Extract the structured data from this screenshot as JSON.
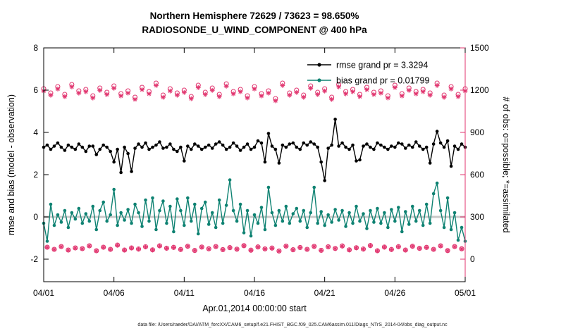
{
  "title_line1": "Northern Hemisphere 72629 / 73623 = 98.650%",
  "title_line2": "RADIOSONDE_U_WIND_COMPONENT @ 400 hPa",
  "caption": "data file: /Users/raeder/DAI/ATM_forcXX/CAM6_setup/f.e21.FHIST_BGC.f09_025.CAM6assim.011/Diags_NTrS_2014-04/obs_diag_output.nc",
  "colors": {
    "rmse": "#000000",
    "bias": "#0e8272",
    "obs": "#e1356f",
    "legend_text": "#0033ff",
    "zero_line": "#c9c9c9",
    "box": "#000000"
  },
  "chart_data": {
    "type": "line",
    "title": "Northern Hemisphere 72629 / 73623 = 98.650% | RADIOSONDE_U_WIND_COMPONENT @ 400 hPa",
    "xlabel": "Apr.01,2014 00:00:00 start",
    "ylabel_left": "rmse and bias (model - observation)",
    "ylabel_right": "# of obs: o=possible; *=assimilated",
    "x_tick_labels": [
      "04/01",
      "04/06",
      "04/11",
      "04/16",
      "04/21",
      "04/26",
      "05/01"
    ],
    "x_tick_days": [
      0,
      5,
      10,
      15,
      20,
      25,
      30
    ],
    "x_span_days": 30,
    "dt_days": 0.25,
    "yticks_left": [
      -2,
      0,
      2,
      4,
      6,
      8
    ],
    "ylim_left": [
      -3.07,
      8
    ],
    "yticks_right": [
      0,
      300,
      600,
      900,
      1200,
      1500
    ],
    "ylim_right": [
      0,
      1500
    ],
    "rmse_grand": 3.3294,
    "bias_grand": 0.01799,
    "legend": [
      "rmse grand pr = 3.3294",
      "bias grand pr = 0.01799"
    ],
    "series": {
      "assim_fraction": 0.9865,
      "rmse": [
        3.3,
        3.4,
        3.2,
        3.35,
        3.5,
        3.3,
        3.15,
        3.4,
        3.3,
        3.2,
        3.45,
        3.3,
        3.1,
        3.35,
        3.35,
        2.95,
        3.2,
        3.4,
        3.3,
        3.1,
        2.6,
        3.2,
        2.1,
        3.3,
        3.0,
        2.15,
        3.25,
        3.45,
        3.3,
        3.5,
        3.2,
        3.3,
        3.4,
        3.55,
        3.25,
        3.3,
        3.45,
        3.2,
        3.1,
        3.3,
        2.65,
        3.35,
        3.2,
        3.45,
        3.35,
        3.2,
        3.3,
        3.4,
        3.25,
        3.45,
        3.55,
        3.4,
        3.2,
        3.3,
        3.5,
        3.35,
        3.15,
        3.3,
        3.45,
        3.2,
        3.3,
        3.6,
        3.5,
        2.6,
        3.95,
        3.35,
        3.2,
        2.55,
        3.4,
        3.3,
        3.45,
        3.5,
        3.3,
        3.2,
        3.5,
        3.4,
        3.55,
        3.45,
        3.3,
        2.6,
        1.72,
        3.25,
        3.4,
        4.62,
        3.35,
        3.5,
        3.3,
        3.2,
        3.4,
        2.65,
        2.7,
        3.35,
        3.45,
        3.3,
        3.2,
        3.5,
        3.4,
        3.3,
        3.2,
        3.35,
        3.3,
        3.5,
        3.45,
        3.25,
        3.4,
        3.3,
        3.55,
        3.35,
        3.2,
        3.3,
        2.55,
        3.45,
        4.05,
        3.5,
        3.3,
        3.6,
        2.4,
        3.35,
        3.2,
        3.45,
        3.3
      ],
      "bias": [
        -0.3,
        -1.15,
        0.6,
        -0.4,
        0.1,
        -0.25,
        0.3,
        -0.5,
        0.2,
        -0.1,
        0.4,
        -0.3,
        0.15,
        -0.2,
        0.5,
        -0.6,
        0.3,
        0.7,
        -0.2,
        0.1,
        1.3,
        -0.4,
        0.2,
        -0.15,
        0.35,
        -0.3,
        0.6,
        0.2,
        -0.45,
        0.8,
        -0.2,
        0.9,
        -0.6,
        0.3,
        0.75,
        -0.3,
        0.5,
        -0.7,
        0.85,
        0.3,
        -0.4,
        0.9,
        -0.2,
        0.6,
        -0.8,
        0.4,
        0.7,
        -0.35,
        0.2,
        -0.5,
        0.8,
        -0.3,
        0.55,
        1.75,
        0.3,
        -0.2,
        0.6,
        -0.75,
        0.3,
        -0.9,
        0.1,
        -0.3,
        0.45,
        -0.6,
        1.4,
        0.2,
        -0.4,
        0.3,
        -0.2,
        0.5,
        -0.3,
        0.15,
        0.4,
        -0.2,
        0.3,
        -0.5,
        0.2,
        1.4,
        -0.3,
        0.25,
        -0.4,
        0.1,
        -0.25,
        0.35,
        -0.15,
        0.3,
        -0.45,
        0.2,
        -0.3,
        0.5,
        -0.2,
        0.15,
        -0.55,
        0.3,
        -0.25,
        0.4,
        -0.3,
        0.2,
        -0.5,
        0.35,
        -0.2,
        0.45,
        -0.7,
        0.25,
        -0.35,
        0.5,
        -0.2,
        0.3,
        -0.4,
        0.6,
        -0.3,
        1.1,
        1.6,
        0.3,
        -0.5,
        0.9,
        -0.6,
        0.2,
        -1.1,
        -0.5,
        -1.15
      ],
      "n_possible": [
        1210,
        85,
        1180,
        70,
        1225,
        90,
        1170,
        65,
        1240,
        80,
        1195,
        75,
        1205,
        95,
        1160,
        60,
        1215,
        85,
        1185,
        70,
        1230,
        100,
        1175,
        65,
        1195,
        80,
        1150,
        72,
        1220,
        88,
        1190,
        66,
        1250,
        95,
        1165,
        78,
        1210,
        84,
        1180,
        69,
        1200,
        92,
        1155,
        62,
        1235,
        86,
        1185,
        74,
        1215,
        90,
        1170,
        68,
        1245,
        82,
        1190,
        71,
        1205,
        96,
        1160,
        64,
        1225,
        87,
        1175,
        73,
        1195,
        79,
        1140,
        58,
        1250,
        93,
        1180,
        67,
        1200,
        83,
        1165,
        70,
        1230,
        91,
        1185,
        63,
        1210,
        88,
        1150,
        76,
        1240,
        94,
        1190,
        66,
        1205,
        81,
        1170,
        72,
        1220,
        97,
        1185,
        60,
        1195,
        86,
        1160,
        69,
        1235,
        89,
        1175,
        65,
        1215,
        92,
        1190,
        77,
        1205,
        84,
        1180,
        70,
        1250,
        95,
        1165,
        61,
        1225,
        90,
        1170,
        74,
        1210
      ]
    }
  }
}
